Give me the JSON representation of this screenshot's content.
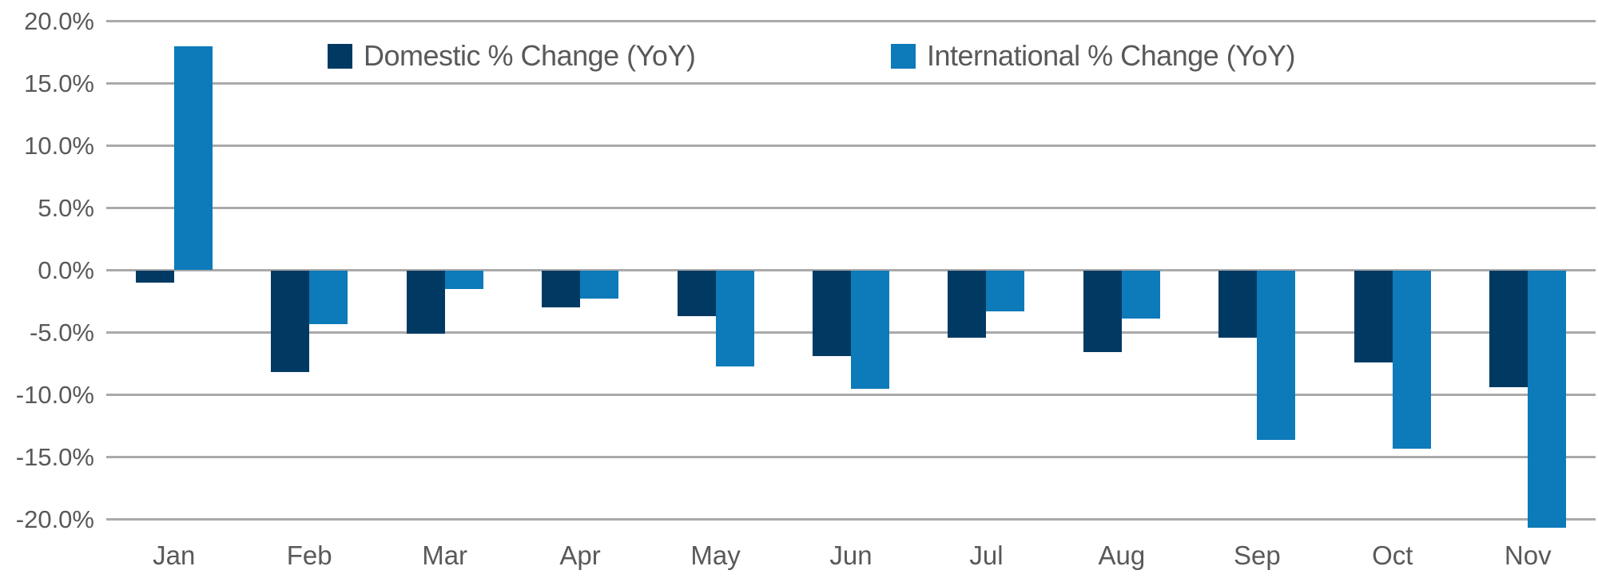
{
  "colors": {
    "domestic": "#003a63",
    "international": "#0d7ab9",
    "gridline": "#aaaaaa",
    "axis_text": "#595959"
  },
  "legend": {
    "domestic_label": "Domestic % Change (YoY)",
    "international_label": "International % Change (YoY)"
  },
  "chart_data": {
    "type": "bar",
    "title": "",
    "xlabel": "",
    "ylabel": "",
    "categories": [
      "Jan",
      "Feb",
      "Mar",
      "Apr",
      "May",
      "Jun",
      "Jul",
      "Aug",
      "Sep",
      "Oct",
      "Nov"
    ],
    "series": [
      {
        "name": "Domestic % Change (YoY)",
        "color_key": "domestic",
        "values": [
          -1.0,
          -8.2,
          -5.1,
          -3.0,
          -3.7,
          -6.9,
          -5.4,
          -6.6,
          -5.4,
          -7.4,
          -9.4
        ]
      },
      {
        "name": "International % Change (YoY)",
        "color_key": "international",
        "values": [
          18.0,
          -4.3,
          -1.5,
          -2.3,
          -7.7,
          -9.5,
          -3.3,
          -3.9,
          -13.6,
          -14.3,
          -20.7
        ]
      }
    ],
    "ylim": [
      -20.7,
      20
    ],
    "ytick_values": [
      20,
      15,
      10,
      5,
      0,
      -5,
      -10,
      -15,
      -20
    ],
    "ytick_labels": [
      "20.0%",
      "15.0%",
      "10.0%",
      "5.0%",
      "0.0%",
      "-5.0%",
      "-10.0%",
      "-15.0%",
      "-20.0%"
    ],
    "grid": "horizontal",
    "legend_position": "top-inside"
  }
}
